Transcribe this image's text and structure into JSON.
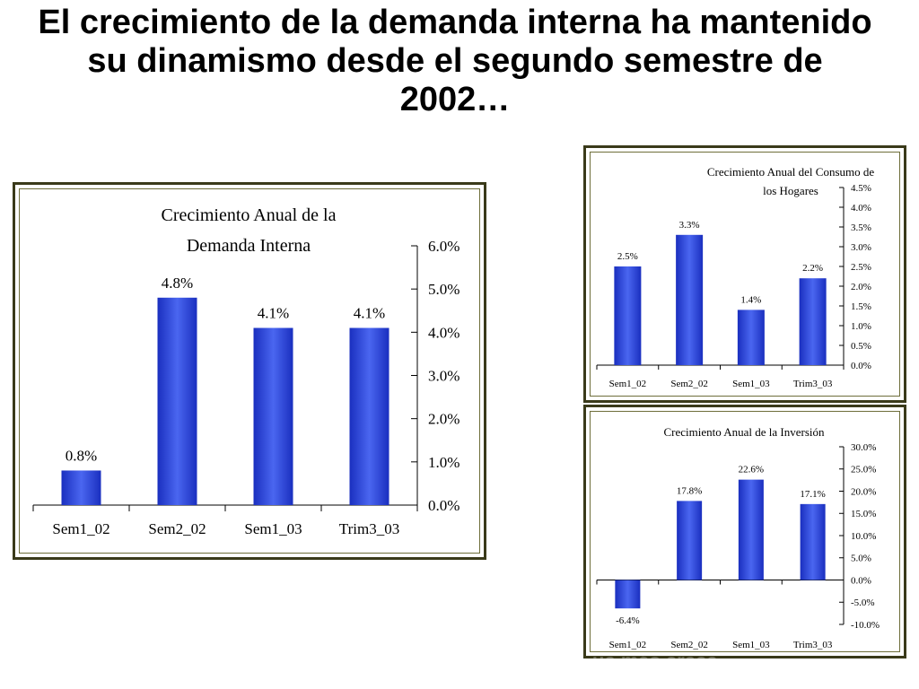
{
  "slide": {
    "title": "El crecimiento de la demanda interna ha mantenido su dinamismo desde el segundo semestre de 2002…",
    "footer_fragment": "ue más crece"
  },
  "colors": {
    "bar_dark": "#1a2fbf",
    "bar_light": "#4a66f0",
    "frame": "#3a3a1a"
  },
  "chart_data": [
    {
      "id": "demanda",
      "type": "bar",
      "title_lines": [
        "Crecimiento Anual de la",
        "Demanda Interna"
      ],
      "categories": [
        "Sem1_02",
        "Sem2_02",
        "Sem1_03",
        "Trim3_03"
      ],
      "values": [
        0.8,
        4.8,
        4.1,
        4.1
      ],
      "value_labels": [
        "0.8%",
        "4.8%",
        "4.1%",
        "4.1%"
      ],
      "ylim": [
        0,
        6
      ],
      "yticks": [
        0,
        1,
        2,
        3,
        4,
        5,
        6
      ],
      "ytick_labels": [
        "0.0%",
        "1.0%",
        "2.0%",
        "3.0%",
        "4.0%",
        "5.0%",
        "6.0%"
      ],
      "yaxis_side": "right",
      "grid": false,
      "legend": "none"
    },
    {
      "id": "consumo",
      "type": "bar",
      "title_lines": [
        "Crecimiento Anual del Consumo de",
        "los Hogares"
      ],
      "categories": [
        "Sem1_02",
        "Sem2_02",
        "Sem1_03",
        "Trim3_03"
      ],
      "values": [
        2.5,
        3.3,
        1.4,
        2.2
      ],
      "value_labels": [
        "2.5%",
        "3.3%",
        "1.4%",
        "2.2%"
      ],
      "ylim": [
        0,
        4.5
      ],
      "yticks": [
        0,
        0.5,
        1,
        1.5,
        2,
        2.5,
        3,
        3.5,
        4,
        4.5
      ],
      "ytick_labels": [
        "0.0%",
        "0.5%",
        "1.0%",
        "1.5%",
        "2.0%",
        "2.5%",
        "3.0%",
        "3.5%",
        "4.0%",
        "4.5%"
      ],
      "yaxis_side": "right",
      "grid": false,
      "legend": "none"
    },
    {
      "id": "inversion",
      "type": "bar",
      "title_lines": [
        "Crecimiento Anual de la Inversión"
      ],
      "categories": [
        "Sem1_02",
        "Sem2_02",
        "Sem1_03",
        "Trim3_03"
      ],
      "values": [
        -6.4,
        17.8,
        22.6,
        17.1
      ],
      "value_labels": [
        "-6.4%",
        "17.8%",
        "22.6%",
        "17.1%"
      ],
      "ylim": [
        -10,
        30
      ],
      "yticks": [
        -10,
        -5,
        0,
        5,
        10,
        15,
        20,
        25,
        30
      ],
      "ytick_labels": [
        "-10.0%",
        "-5.0%",
        "0.0%",
        "5.0%",
        "10.0%",
        "15.0%",
        "20.0%",
        "25.0%",
        "30.0%"
      ],
      "yaxis_side": "right",
      "grid": false,
      "legend": "none"
    }
  ]
}
